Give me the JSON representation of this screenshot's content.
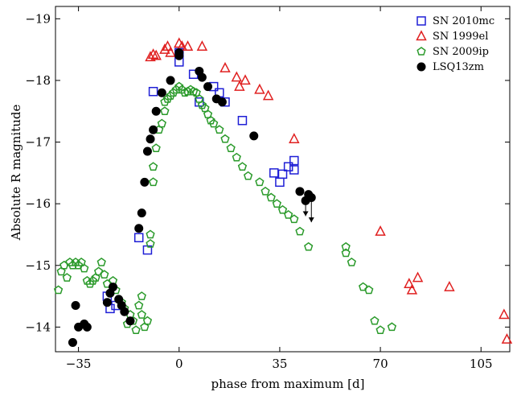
{
  "chart_data": {
    "type": "scatter",
    "xlabel": "phase from maximum [d]",
    "ylabel": "Absolute R magnitude",
    "xlim": [
      -43,
      115
    ],
    "ylim": [
      -13.6,
      -19.2
    ],
    "y_inverted": true,
    "x_ticks": [
      -35,
      0,
      35,
      70,
      105
    ],
    "x_tick_labels": [
      "−35",
      "0",
      "35",
      "70",
      "105"
    ],
    "y_ticks": [
      -14,
      -15,
      -16,
      -17,
      -18,
      -19
    ],
    "y_tick_labels": [
      "−14",
      "−15",
      "−16",
      "−17",
      "−18",
      "−19"
    ],
    "grid": false,
    "legend_position": "top-right",
    "series": [
      {
        "name": "SN 2010mc",
        "marker": "square",
        "color": "#1f1fd6",
        "points": [
          [
            -14,
            -15.45
          ],
          [
            -11,
            -15.25
          ],
          [
            -9,
            -17.82
          ],
          [
            -25,
            -14.5
          ],
          [
            -24,
            -14.3
          ],
          [
            -22,
            -14.35
          ],
          [
            0,
            -18.3
          ],
          [
            0,
            -18.45
          ],
          [
            5,
            -18.1
          ],
          [
            7,
            -17.65
          ],
          [
            12,
            -17.9
          ],
          [
            14,
            -17.8
          ],
          [
            16,
            -17.65
          ],
          [
            22,
            -17.35
          ],
          [
            33,
            -16.5
          ],
          [
            35,
            -16.35
          ],
          [
            36,
            -16.48
          ],
          [
            38,
            -16.6
          ],
          [
            40,
            -16.55
          ],
          [
            40,
            -16.7
          ]
        ]
      },
      {
        "name": "SN 1999el",
        "marker": "triangle",
        "color": "#e02020",
        "points": [
          [
            -10,
            -18.38
          ],
          [
            -9,
            -18.42
          ],
          [
            -8,
            -18.4
          ],
          [
            -5,
            -18.5
          ],
          [
            -4,
            -18.55
          ],
          [
            -3,
            -18.45
          ],
          [
            0,
            -18.6
          ],
          [
            1,
            -18.55
          ],
          [
            3,
            -18.55
          ],
          [
            8,
            -18.55
          ],
          [
            16,
            -18.2
          ],
          [
            20,
            -18.05
          ],
          [
            21,
            -17.9
          ],
          [
            23,
            -18.0
          ],
          [
            28,
            -17.85
          ],
          [
            31,
            -17.75
          ],
          [
            40,
            -17.05
          ],
          [
            70,
            -15.55
          ],
          [
            80,
            -14.7
          ],
          [
            81,
            -14.6
          ],
          [
            83,
            -14.8
          ],
          [
            94,
            -14.65
          ],
          [
            113,
            -14.2
          ],
          [
            114,
            -13.8
          ]
        ]
      },
      {
        "name": "SN 2009ip",
        "marker": "pentagon",
        "color": "#2a9a2a",
        "points": [
          [
            -42,
            -14.6
          ],
          [
            -41,
            -14.9
          ],
          [
            -40,
            -15.0
          ],
          [
            -39,
            -14.8
          ],
          [
            -38,
            -15.05
          ],
          [
            -37,
            -15.0
          ],
          [
            -36,
            -15.05
          ],
          [
            -35,
            -15.0
          ],
          [
            -34,
            -15.05
          ],
          [
            -33,
            -14.95
          ],
          [
            -32,
            -14.75
          ],
          [
            -31,
            -14.7
          ],
          [
            -30,
            -14.75
          ],
          [
            -29,
            -14.8
          ],
          [
            -28,
            -14.9
          ],
          [
            -27,
            -15.05
          ],
          [
            -26,
            -14.85
          ],
          [
            -25,
            -14.7
          ],
          [
            -23,
            -14.75
          ],
          [
            -22,
            -14.6
          ],
          [
            -20,
            -14.4
          ],
          [
            -19,
            -14.3
          ],
          [
            -18,
            -14.05
          ],
          [
            -17,
            -14.2
          ],
          [
            -16,
            -14.1
          ],
          [
            -15,
            -13.95
          ],
          [
            -14,
            -14.35
          ],
          [
            -13,
            -14.5
          ],
          [
            -13,
            -14.2
          ],
          [
            -12,
            -14.0
          ],
          [
            -11,
            -14.1
          ],
          [
            -10,
            -15.35
          ],
          [
            -10,
            -15.5
          ],
          [
            -9,
            -16.35
          ],
          [
            -9,
            -16.6
          ],
          [
            -8,
            -16.9
          ],
          [
            -7,
            -17.2
          ],
          [
            -6,
            -17.3
          ],
          [
            -5,
            -17.5
          ],
          [
            -5,
            -17.65
          ],
          [
            -4,
            -17.7
          ],
          [
            -3,
            -17.75
          ],
          [
            -2,
            -17.8
          ],
          [
            -1,
            -17.85
          ],
          [
            0,
            -17.9
          ],
          [
            1,
            -17.85
          ],
          [
            2,
            -17.8
          ],
          [
            3,
            -17.82
          ],
          [
            4,
            -17.85
          ],
          [
            5,
            -17.82
          ],
          [
            6,
            -17.8
          ],
          [
            7,
            -17.7
          ],
          [
            8,
            -17.6
          ],
          [
            9,
            -17.55
          ],
          [
            10,
            -17.45
          ],
          [
            11,
            -17.35
          ],
          [
            12,
            -17.3
          ],
          [
            14,
            -17.2
          ],
          [
            16,
            -17.05
          ],
          [
            18,
            -16.9
          ],
          [
            20,
            -16.75
          ],
          [
            22,
            -16.6
          ],
          [
            24,
            -16.45
          ],
          [
            28,
            -16.35
          ],
          [
            30,
            -16.2
          ],
          [
            32,
            -16.1
          ],
          [
            34,
            -16.0
          ],
          [
            36,
            -15.9
          ],
          [
            38,
            -15.82
          ],
          [
            40,
            -15.75
          ],
          [
            42,
            -15.55
          ],
          [
            45,
            -15.3
          ],
          [
            58,
            -15.3
          ],
          [
            58,
            -15.2
          ],
          [
            60,
            -15.05
          ],
          [
            64,
            -14.65
          ],
          [
            66,
            -14.6
          ],
          [
            68,
            -14.1
          ],
          [
            70,
            -13.95
          ],
          [
            74,
            -14.0
          ]
        ]
      },
      {
        "name": "LSQ13zm",
        "marker": "circle",
        "color": "#000000",
        "points": [
          [
            -37,
            -13.75
          ],
          [
            -35,
            -14.0
          ],
          [
            -33,
            -14.05
          ],
          [
            -32,
            -14.0
          ],
          [
            -36,
            -14.35
          ],
          [
            -25,
            -14.4
          ],
          [
            -24,
            -14.55
          ],
          [
            -23,
            -14.65
          ],
          [
            -21,
            -14.45
          ],
          [
            -20,
            -14.35
          ],
          [
            -19,
            -14.25
          ],
          [
            -17,
            -14.1
          ],
          [
            -14,
            -15.6
          ],
          [
            -13,
            -15.85
          ],
          [
            -12,
            -16.35
          ],
          [
            -11,
            -16.85
          ],
          [
            -10,
            -17.05
          ],
          [
            -9,
            -17.2
          ],
          [
            -8,
            -17.5
          ],
          [
            -6,
            -17.8
          ],
          [
            -3,
            -18.0
          ],
          [
            0,
            -18.4
          ],
          [
            0,
            -18.45
          ],
          [
            7,
            -18.15
          ],
          [
            8,
            -18.05
          ],
          [
            10,
            -17.9
          ],
          [
            13,
            -17.7
          ],
          [
            15,
            -17.65
          ],
          [
            26,
            -17.1
          ],
          [
            42,
            -16.2
          ],
          [
            45,
            -16.15
          ],
          [
            44,
            -16.05
          ],
          [
            46,
            -16.1
          ]
        ]
      }
    ],
    "upper_limits": [
      [
        44,
        -15.8
      ],
      [
        46,
        -15.7
      ]
    ]
  }
}
